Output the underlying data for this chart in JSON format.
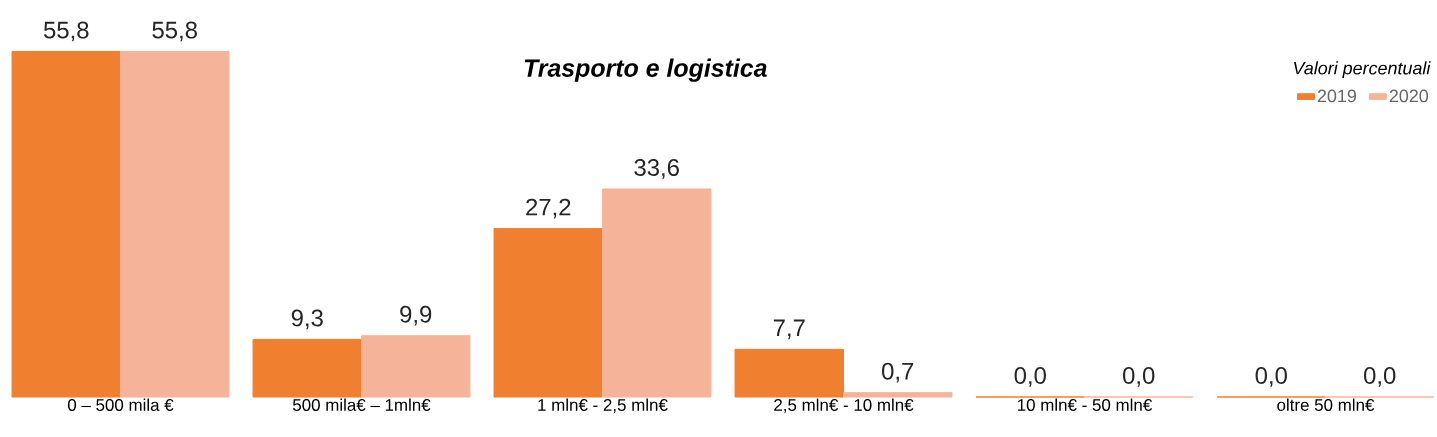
{
  "chart_data": {
    "type": "bar",
    "title": "Trasporto e logistica",
    "legend_title": "Valori percentuali",
    "legend": "top right",
    "categories": [
      "0 – 500 mila €",
      "500 mila€ – 1mln€",
      "1 mln€ - 2,5 mln€",
      "2,5 mln€ - 10 mln€",
      "10 mln€ - 50 mln€",
      "oltre 50 mln€"
    ],
    "series": [
      {
        "name": "2019",
        "color": "#f07f2f",
        "values": [
          55.8,
          9.3,
          27.2,
          7.7,
          0.0,
          0.0
        ],
        "value_labels": [
          "55,8",
          "9,3",
          "27,2",
          "7,7",
          "0,0",
          "0,0"
        ]
      },
      {
        "name": "2020",
        "color": "#f5b49a",
        "values": [
          55.8,
          9.9,
          33.6,
          0.7,
          0.0,
          0.0
        ],
        "value_labels": [
          "55,8",
          "9,9",
          "33,6",
          "0,7",
          "0,0",
          "0,0"
        ]
      }
    ]
  }
}
